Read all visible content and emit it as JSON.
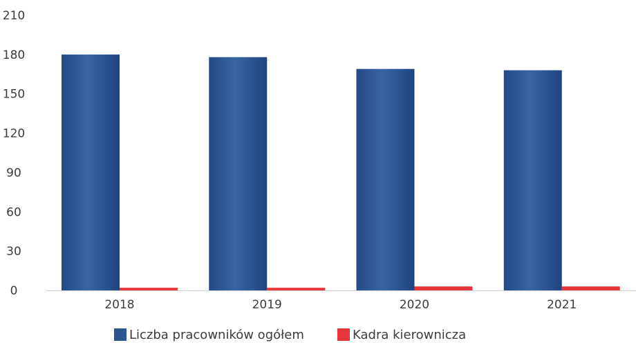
{
  "chart_data": {
    "type": "bar",
    "title": "",
    "xlabel": "",
    "ylabel": "",
    "categories": [
      "2018",
      "2019",
      "2020",
      "2021"
    ],
    "series": [
      {
        "name": "Liczba pracowników ogółem",
        "values": [
          180,
          178,
          169,
          168
        ]
      },
      {
        "name": "Kadra kierownicza",
        "values": [
          2,
          2,
          3,
          3
        ]
      }
    ],
    "ylim": [
      0,
      210
    ],
    "yticks": [
      "0",
      "30",
      "60",
      "90",
      "120",
      "150",
      "180",
      "210"
    ],
    "grid": false,
    "legend_position": "bottom"
  },
  "colors": {
    "series": [
      "#2e5591",
      "#e8343c"
    ],
    "axis": "#cfcfcf",
    "text": "#3c3c3c"
  }
}
